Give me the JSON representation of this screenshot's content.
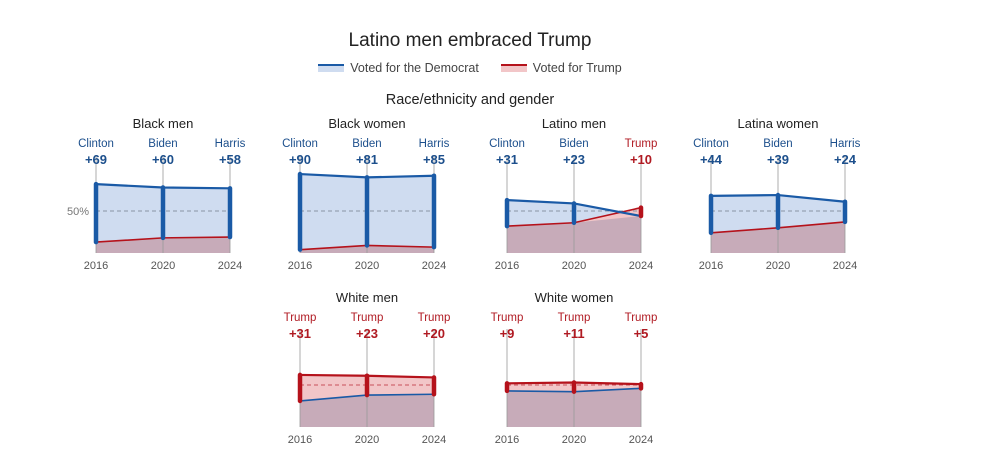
{
  "title": "Latino men embraced Trump",
  "legend": {
    "dem": "Voted for the Democrat",
    "rep": "Voted for Trump"
  },
  "subtitle": "Race/ethnicity and gender",
  "colors": {
    "dem": "#1a5aa6",
    "rep": "#b5121b",
    "dem_text": "#1c4f8c",
    "rep_text": "#b01a22"
  },
  "chart_data": [
    {
      "type": "area",
      "title": "Black men",
      "years": [
        "2016",
        "2020",
        "2024"
      ],
      "winners": [
        "Clinton",
        "Biden",
        "Harris"
      ],
      "margins": [
        "+69",
        "+60",
        "+58"
      ],
      "party": [
        "dem",
        "dem",
        "dem"
      ],
      "dem": [
        82,
        78,
        77
      ],
      "rep": [
        13,
        18,
        19
      ],
      "ylabel_50": "50%",
      "ylim": [
        0,
        100
      ]
    },
    {
      "type": "area",
      "title": "Black women",
      "years": [
        "2016",
        "2020",
        "2024"
      ],
      "winners": [
        "Clinton",
        "Biden",
        "Harris"
      ],
      "margins": [
        "+90",
        "+81",
        "+85"
      ],
      "party": [
        "dem",
        "dem",
        "dem"
      ],
      "dem": [
        94,
        90,
        92
      ],
      "rep": [
        4,
        9,
        7
      ],
      "ylim": [
        0,
        100
      ]
    },
    {
      "type": "area",
      "title": "Latino men",
      "years": [
        "2016",
        "2020",
        "2024"
      ],
      "winners": [
        "Clinton",
        "Biden",
        "Trump"
      ],
      "margins": [
        "+31",
        "+23",
        "+10"
      ],
      "party": [
        "dem",
        "dem",
        "rep"
      ],
      "dem": [
        63,
        59,
        44
      ],
      "rep": [
        32,
        36,
        54
      ],
      "ylim": [
        0,
        100
      ]
    },
    {
      "type": "area",
      "title": "Latina women",
      "years": [
        "2016",
        "2020",
        "2024"
      ],
      "winners": [
        "Clinton",
        "Biden",
        "Harris"
      ],
      "margins": [
        "+44",
        "+39",
        "+24"
      ],
      "party": [
        "dem",
        "dem",
        "dem"
      ],
      "dem": [
        68,
        69,
        61
      ],
      "rep": [
        24,
        30,
        37
      ],
      "ylim": [
        0,
        100
      ]
    },
    {
      "type": "area",
      "title": "White men",
      "years": [
        "2016",
        "2020",
        "2024"
      ],
      "winners": [
        "Trump",
        "Trump",
        "Trump"
      ],
      "margins": [
        "+31",
        "+23",
        "+20"
      ],
      "party": [
        "rep",
        "rep",
        "rep"
      ],
      "dem": [
        31,
        38,
        39
      ],
      "rep": [
        62,
        61,
        59
      ],
      "ylim": [
        0,
        100
      ]
    },
    {
      "type": "area",
      "title": "White women",
      "years": [
        "2016",
        "2020",
        "2024"
      ],
      "winners": [
        "Trump",
        "Trump",
        "Trump"
      ],
      "margins": [
        "+9",
        "+11",
        "+5"
      ],
      "party": [
        "rep",
        "rep",
        "rep"
      ],
      "dem": [
        43,
        42,
        46
      ],
      "rep": [
        52,
        53,
        51
      ],
      "ylim": [
        0,
        100
      ]
    }
  ]
}
